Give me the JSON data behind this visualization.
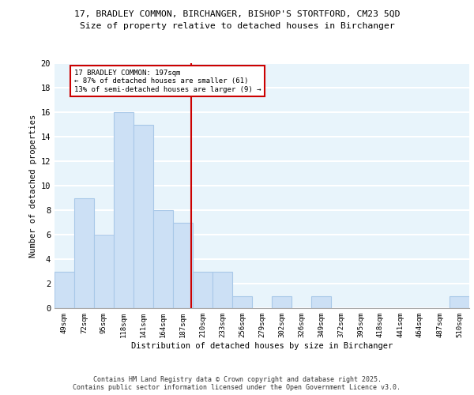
{
  "title1": "17, BRADLEY COMMON, BIRCHANGER, BISHOP'S STORTFORD, CM23 5QD",
  "title2": "Size of property relative to detached houses in Birchanger",
  "xlabel": "Distribution of detached houses by size in Birchanger",
  "ylabel": "Number of detached properties",
  "categories": [
    "49sqm",
    "72sqm",
    "95sqm",
    "118sqm",
    "141sqm",
    "164sqm",
    "187sqm",
    "210sqm",
    "233sqm",
    "256sqm",
    "279sqm",
    "302sqm",
    "326sqm",
    "349sqm",
    "372sqm",
    "395sqm",
    "418sqm",
    "441sqm",
    "464sqm",
    "487sqm",
    "510sqm"
  ],
  "values": [
    3,
    9,
    6,
    16,
    15,
    8,
    7,
    3,
    3,
    1,
    0,
    1,
    0,
    1,
    0,
    0,
    0,
    0,
    0,
    0,
    1
  ],
  "bar_color": "#cce0f5",
  "bar_edge_color": "#a8c8e8",
  "bg_color": "#e8f4fb",
  "grid_color": "#ffffff",
  "vline_color": "#cc0000",
  "annotation_text": "17 BRADLEY COMMON: 197sqm\n← 87% of detached houses are smaller (61)\n13% of semi-detached houses are larger (9) →",
  "annotation_box_color": "#ffffff",
  "annotation_box_edge_color": "#cc0000",
  "ylim": [
    0,
    20
  ],
  "yticks": [
    0,
    2,
    4,
    6,
    8,
    10,
    12,
    14,
    16,
    18,
    20
  ],
  "footer1": "Contains HM Land Registry data © Crown copyright and database right 2025.",
  "footer2": "Contains public sector information licensed under the Open Government Licence v3.0."
}
